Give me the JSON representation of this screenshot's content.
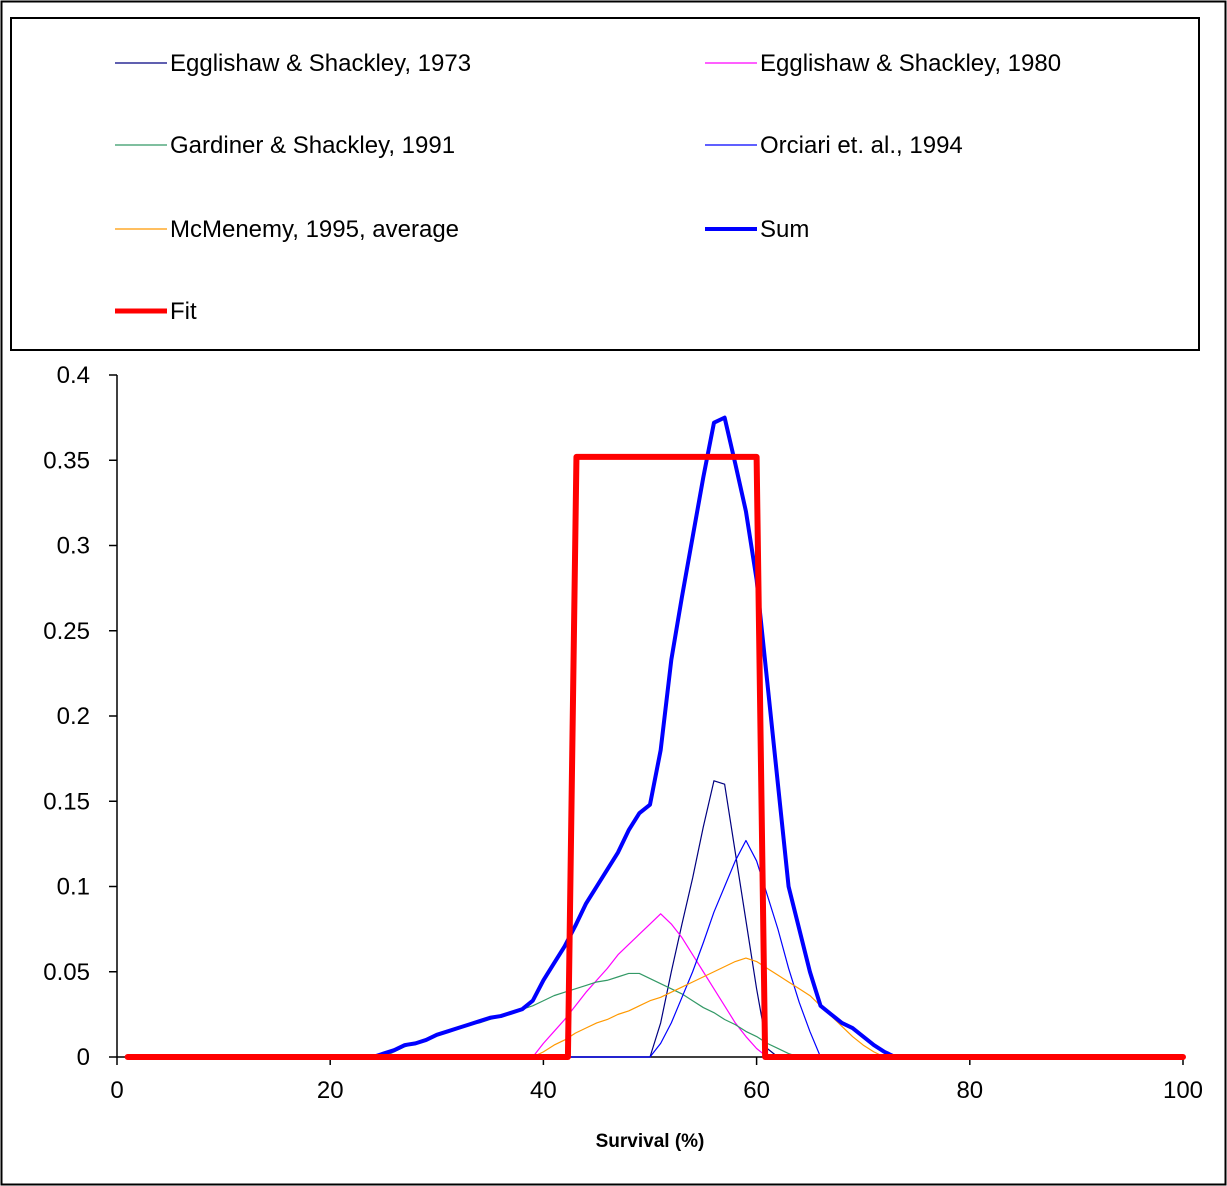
{
  "chart_data": {
    "type": "line",
    "title": "",
    "xlabel": "Survival (%)",
    "ylabel": "",
    "xlim": [
      0,
      100
    ],
    "ylim": [
      0,
      0.4
    ],
    "xticks": [
      0,
      20,
      40,
      60,
      80,
      100
    ],
    "yticks": [
      0,
      0.05,
      0.1,
      0.15,
      0.2,
      0.25,
      0.3,
      0.35,
      0.4
    ],
    "grid": false,
    "legend_position": "top",
    "series": [
      {
        "name": "Egglishaw & Shackley, 1973",
        "color": "#000080",
        "width": 1.2,
        "points": [
          [
            1,
            0
          ],
          [
            50,
            0
          ],
          [
            51,
            0.02
          ],
          [
            52,
            0.05
          ],
          [
            53,
            0.078
          ],
          [
            54,
            0.105
          ],
          [
            55,
            0.135
          ],
          [
            56,
            0.162
          ],
          [
            57,
            0.16
          ],
          [
            58,
            0.12
          ],
          [
            59,
            0.08
          ],
          [
            60,
            0.04
          ],
          [
            61,
            0.005
          ],
          [
            62,
            0
          ],
          [
            100,
            0
          ]
        ]
      },
      {
        "name": "Egglishaw & Shackley, 1980",
        "color": "#ff00ff",
        "width": 1.2,
        "points": [
          [
            1,
            0
          ],
          [
            39,
            0
          ],
          [
            40,
            0.008
          ],
          [
            41,
            0.015
          ],
          [
            42,
            0.022
          ],
          [
            43,
            0.03
          ],
          [
            44,
            0.038
          ],
          [
            45,
            0.045
          ],
          [
            46,
            0.052
          ],
          [
            47,
            0.06
          ],
          [
            48,
            0.066
          ],
          [
            49,
            0.072
          ],
          [
            50,
            0.078
          ],
          [
            51,
            0.084
          ],
          [
            52,
            0.078
          ],
          [
            53,
            0.07
          ],
          [
            54,
            0.06
          ],
          [
            55,
            0.05
          ],
          [
            56,
            0.04
          ],
          [
            57,
            0.03
          ],
          [
            58,
            0.02
          ],
          [
            59,
            0.012
          ],
          [
            60,
            0.005
          ],
          [
            61,
            0
          ],
          [
            100,
            0
          ]
        ]
      },
      {
        "name": "Gardiner & Shackley, 1991",
        "color": "#339966",
        "width": 1.2,
        "points": [
          [
            1,
            0
          ],
          [
            25,
            0
          ],
          [
            26,
            0.003
          ],
          [
            27,
            0.006
          ],
          [
            28,
            0.008
          ],
          [
            29,
            0.01
          ],
          [
            30,
            0.013
          ],
          [
            31,
            0.015
          ],
          [
            32,
            0.017
          ],
          [
            33,
            0.019
          ],
          [
            34,
            0.02
          ],
          [
            35,
            0.022
          ],
          [
            36,
            0.024
          ],
          [
            37,
            0.026
          ],
          [
            38,
            0.028
          ],
          [
            39,
            0.03
          ],
          [
            40,
            0.033
          ],
          [
            41,
            0.036
          ],
          [
            42,
            0.038
          ],
          [
            43,
            0.04
          ],
          [
            44,
            0.042
          ],
          [
            45,
            0.044
          ],
          [
            46,
            0.045
          ],
          [
            47,
            0.047
          ],
          [
            48,
            0.049
          ],
          [
            49,
            0.049
          ],
          [
            50,
            0.046
          ],
          [
            51,
            0.043
          ],
          [
            52,
            0.04
          ],
          [
            53,
            0.037
          ],
          [
            54,
            0.033
          ],
          [
            55,
            0.029
          ],
          [
            56,
            0.026
          ],
          [
            57,
            0.022
          ],
          [
            58,
            0.019
          ],
          [
            59,
            0.015
          ],
          [
            60,
            0.012
          ],
          [
            61,
            0.008
          ],
          [
            62,
            0.005
          ],
          [
            63,
            0.002
          ],
          [
            64,
            0
          ],
          [
            100,
            0
          ]
        ]
      },
      {
        "name": "Orciari et. al., 1994",
        "color": "#0000ff",
        "width": 1.2,
        "points": [
          [
            1,
            0
          ],
          [
            50,
            0
          ],
          [
            51,
            0.008
          ],
          [
            52,
            0.02
          ],
          [
            53,
            0.035
          ],
          [
            54,
            0.05
          ],
          [
            55,
            0.067
          ],
          [
            56,
            0.085
          ],
          [
            57,
            0.1
          ],
          [
            58,
            0.115
          ],
          [
            59,
            0.127
          ],
          [
            60,
            0.115
          ],
          [
            61,
            0.095
          ],
          [
            62,
            0.075
          ],
          [
            63,
            0.052
          ],
          [
            64,
            0.032
          ],
          [
            65,
            0.015
          ],
          [
            66,
            0
          ],
          [
            100,
            0
          ]
        ]
      },
      {
        "name": "McMenemy, 1995, average",
        "color": "#ff9900",
        "width": 1.2,
        "points": [
          [
            1,
            0
          ],
          [
            39,
            0
          ],
          [
            40,
            0.003
          ],
          [
            41,
            0.007
          ],
          [
            42,
            0.01
          ],
          [
            43,
            0.014
          ],
          [
            44,
            0.017
          ],
          [
            45,
            0.02
          ],
          [
            46,
            0.022
          ],
          [
            47,
            0.025
          ],
          [
            48,
            0.027
          ],
          [
            49,
            0.03
          ],
          [
            50,
            0.033
          ],
          [
            51,
            0.035
          ],
          [
            52,
            0.038
          ],
          [
            53,
            0.041
          ],
          [
            54,
            0.044
          ],
          [
            55,
            0.047
          ],
          [
            56,
            0.05
          ],
          [
            57,
            0.053
          ],
          [
            58,
            0.056
          ],
          [
            59,
            0.058
          ],
          [
            60,
            0.056
          ],
          [
            61,
            0.052
          ],
          [
            62,
            0.048
          ],
          [
            63,
            0.044
          ],
          [
            64,
            0.04
          ],
          [
            65,
            0.036
          ],
          [
            66,
            0.03
          ],
          [
            67,
            0.024
          ],
          [
            68,
            0.018
          ],
          [
            69,
            0.012
          ],
          [
            70,
            0.007
          ],
          [
            71,
            0.003
          ],
          [
            72,
            0
          ],
          [
            100,
            0
          ]
        ]
      },
      {
        "name": "Sum",
        "color": "#0000ff",
        "width": 4,
        "points": [
          [
            1,
            0
          ],
          [
            24,
            0
          ],
          [
            25,
            0.002
          ],
          [
            26,
            0.004
          ],
          [
            27,
            0.007
          ],
          [
            28,
            0.008
          ],
          [
            29,
            0.01
          ],
          [
            30,
            0.013
          ],
          [
            31,
            0.015
          ],
          [
            32,
            0.017
          ],
          [
            33,
            0.019
          ],
          [
            34,
            0.021
          ],
          [
            35,
            0.023
          ],
          [
            36,
            0.024
          ],
          [
            37,
            0.026
          ],
          [
            38,
            0.028
          ],
          [
            39,
            0.033
          ],
          [
            40,
            0.045
          ],
          [
            41,
            0.055
          ],
          [
            42,
            0.065
          ],
          [
            43,
            0.077
          ],
          [
            44,
            0.09
          ],
          [
            45,
            0.1
          ],
          [
            46,
            0.11
          ],
          [
            47,
            0.12
          ],
          [
            48,
            0.133
          ],
          [
            49,
            0.143
          ],
          [
            50,
            0.148
          ],
          [
            51,
            0.18
          ],
          [
            52,
            0.233
          ],
          [
            53,
            0.27
          ],
          [
            54,
            0.305
          ],
          [
            55,
            0.34
          ],
          [
            56,
            0.372
          ],
          [
            57,
            0.375
          ],
          [
            58,
            0.348
          ],
          [
            59,
            0.32
          ],
          [
            60,
            0.28
          ],
          [
            61,
            0.22
          ],
          [
            62,
            0.16
          ],
          [
            63,
            0.1
          ],
          [
            64,
            0.075
          ],
          [
            65,
            0.05
          ],
          [
            66,
            0.03
          ],
          [
            67,
            0.025
          ],
          [
            68,
            0.02
          ],
          [
            69,
            0.017
          ],
          [
            70,
            0.012
          ],
          [
            71,
            0.007
          ],
          [
            72,
            0.003
          ],
          [
            73,
            0
          ],
          [
            100,
            0
          ]
        ]
      },
      {
        "name": "Fit",
        "color": "#ff0000",
        "width": 6,
        "points": [
          [
            1,
            0
          ],
          [
            42.3,
            0
          ],
          [
            43.1,
            0.352
          ],
          [
            60,
            0.352
          ],
          [
            60.8,
            0
          ],
          [
            100,
            0
          ]
        ]
      }
    ]
  }
}
